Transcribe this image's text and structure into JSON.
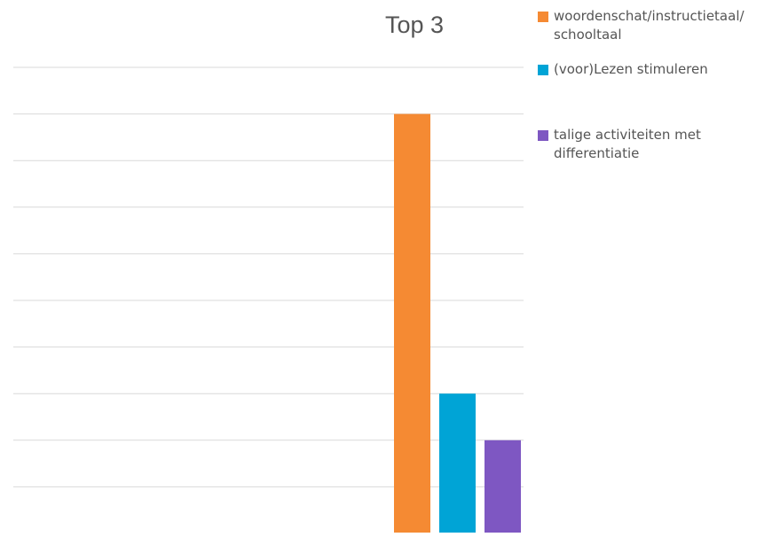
{
  "chart_data": {
    "type": "bar",
    "title": "Top 3",
    "xlabel": "",
    "ylabel": "",
    "categories": [
      ""
    ],
    "series": [
      {
        "name": "woordenschat/instructietaal/ schooltaal",
        "values": [
          9
        ],
        "color": "#F58A33"
      },
      {
        "name": "(voor)Lezen stimuleren",
        "values": [
          3
        ],
        "color": "#00A4D6"
      },
      {
        "name": "talige activiteiten met differentiatie",
        "values": [
          2
        ],
        "color": "#7E57C2"
      }
    ],
    "ylim": [
      0,
      10
    ],
    "grid": true,
    "legend_position": "right",
    "gridline_color": "#D9D9D9"
  }
}
